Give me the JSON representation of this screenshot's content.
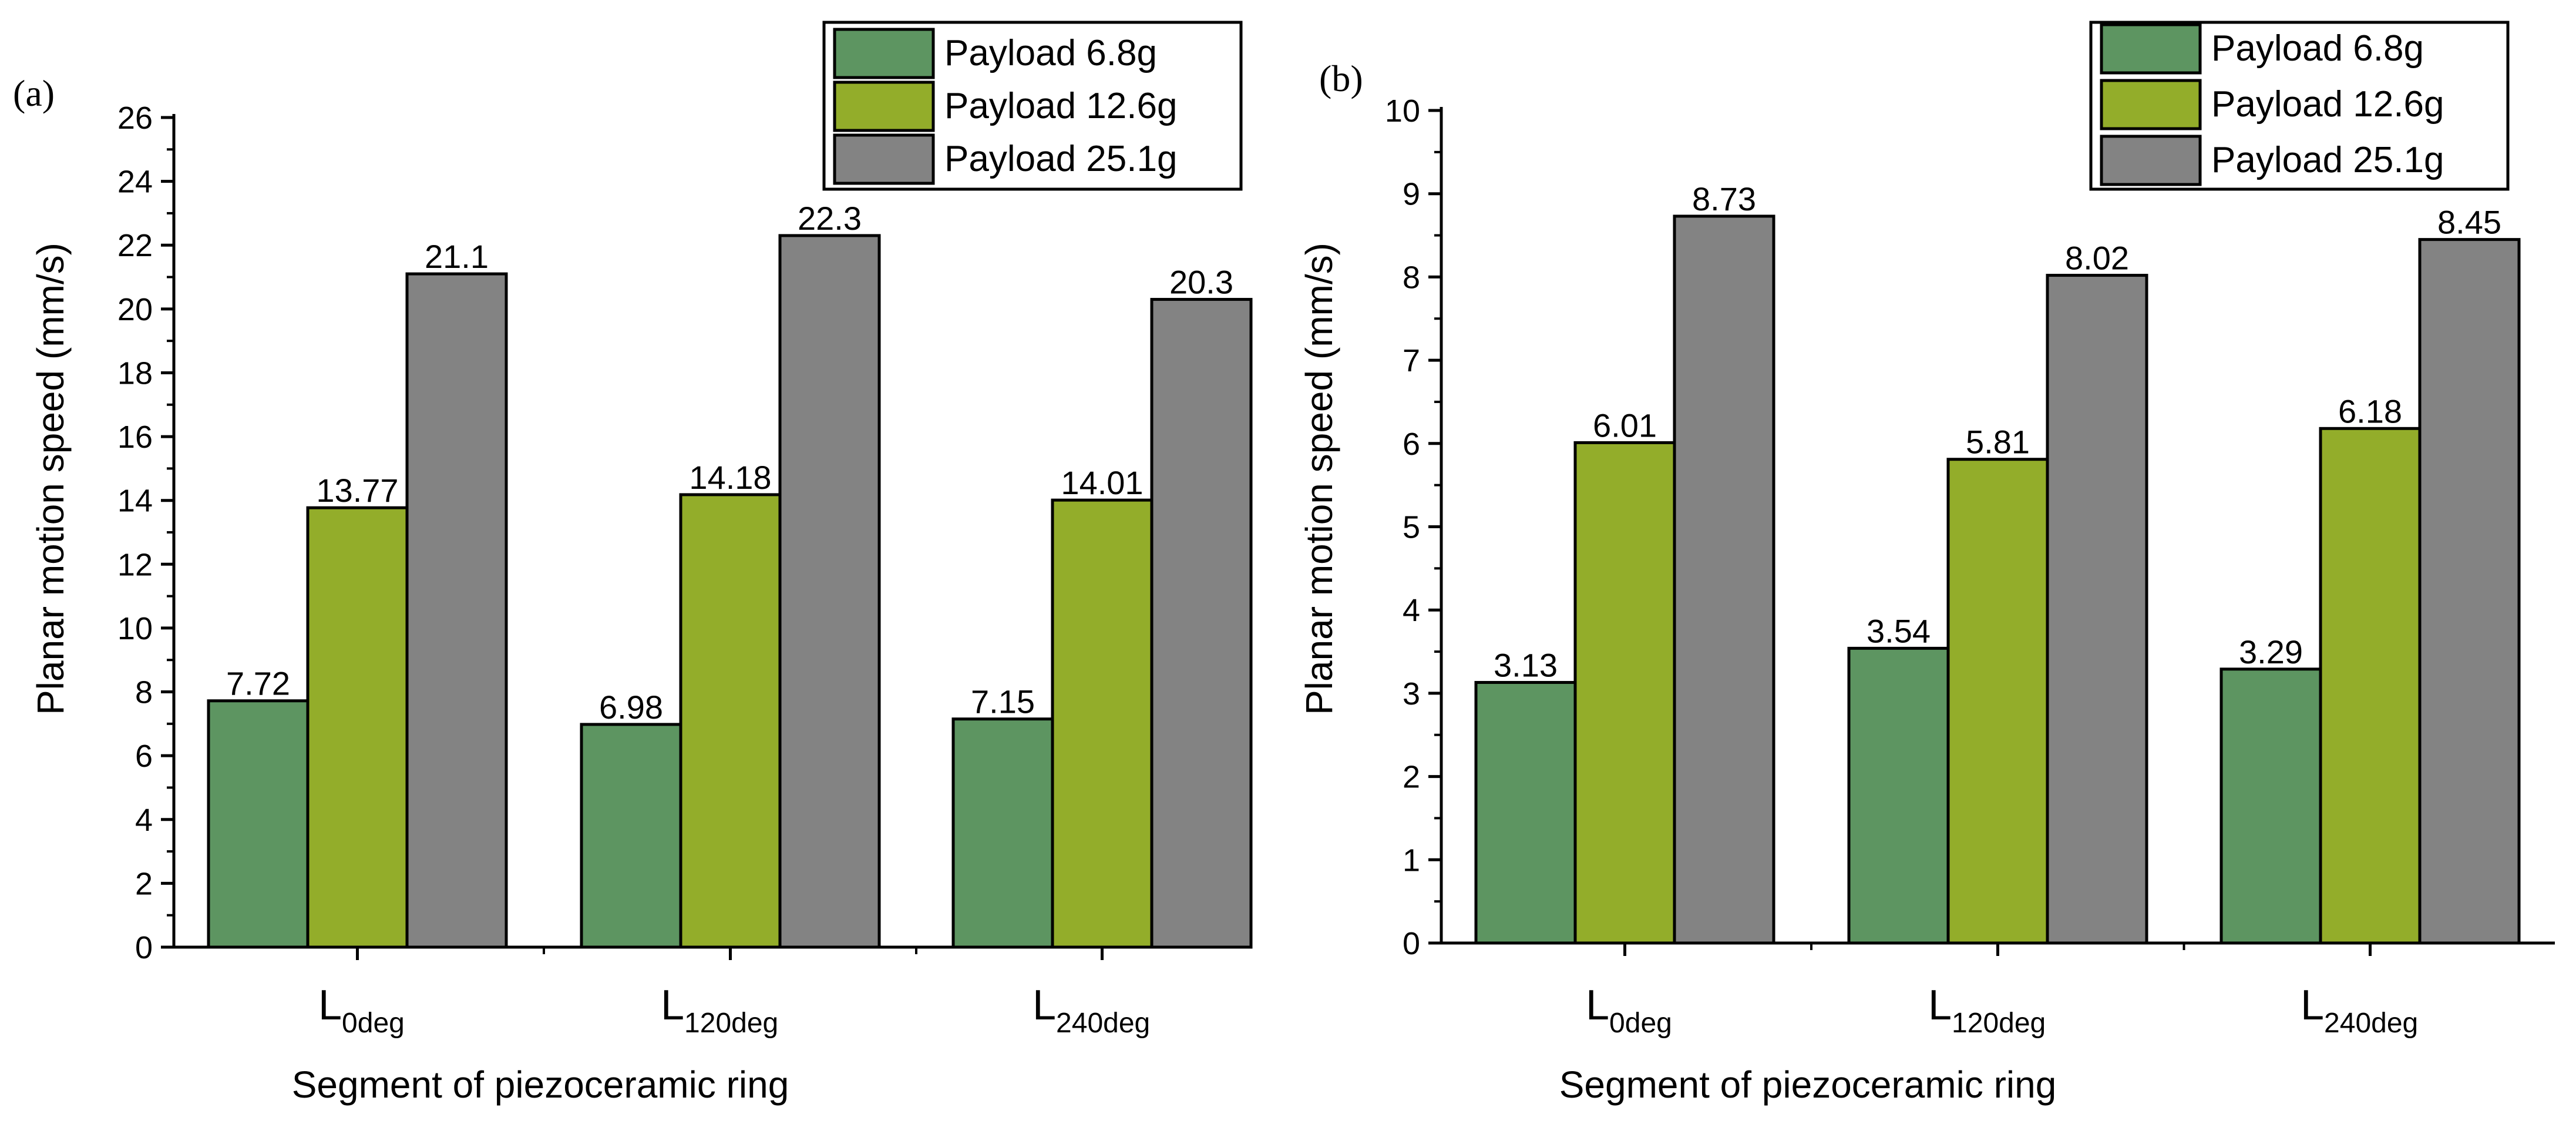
{
  "colors": {
    "payload_6_8": "#5d9561",
    "payload_12_6": "#93ad2a",
    "payload_25_1": "#838383"
  },
  "chart_data": [
    {
      "type": "bar",
      "panel_label": "(a)",
      "xlabel": "Segment of piezoceramic ring",
      "ylabel": "Planar motion speed (mm/s)",
      "categories": [
        {
          "main": "L",
          "sub": "0deg"
        },
        {
          "main": "L",
          "sub": "120deg"
        },
        {
          "main": "L",
          "sub": "240deg"
        }
      ],
      "series": [
        {
          "name": "Payload 6.8g",
          "values": [
            7.72,
            6.98,
            7.15
          ],
          "labels": [
            "7.72",
            "6.98",
            "7.15"
          ]
        },
        {
          "name": "Payload 12.6g",
          "values": [
            13.77,
            14.18,
            14.01
          ],
          "labels": [
            "13.77",
            "14.18",
            "14.01"
          ]
        },
        {
          "name": "Payload 25.1g",
          "values": [
            21.1,
            22.3,
            20.3
          ],
          "labels": [
            "21.1",
            "22.3",
            "20.3"
          ]
        }
      ],
      "ylim": [
        0,
        26
      ],
      "yticks": [
        "0",
        "2",
        "4",
        "6",
        "8",
        "10",
        "12",
        "14",
        "16",
        "18",
        "20",
        "22",
        "24",
        "26"
      ],
      "ytick_step": 2,
      "yminor_step": 1,
      "legend": "top-right"
    },
    {
      "type": "bar",
      "panel_label": "(b)",
      "xlabel": "Segment of piezoceramic ring",
      "ylabel": "Planar motion speed (mm/s)",
      "categories": [
        {
          "main": "L",
          "sub": "0deg"
        },
        {
          "main": "L",
          "sub": "120deg"
        },
        {
          "main": "L",
          "sub": "240deg"
        }
      ],
      "series": [
        {
          "name": "Payload 6.8g",
          "values": [
            3.13,
            3.54,
            3.29
          ],
          "labels": [
            "3.13",
            "3.54",
            "3.29"
          ]
        },
        {
          "name": "Payload 12.6g",
          "values": [
            6.01,
            5.81,
            6.18
          ],
          "labels": [
            "6.01",
            "5.81",
            "6.18"
          ]
        },
        {
          "name": "Payload 25.1g",
          "values": [
            8.73,
            8.02,
            8.45
          ],
          "labels": [
            "8.73",
            "8.02",
            "8.45"
          ]
        }
      ],
      "ylim": [
        0,
        10
      ],
      "yticks": [
        "0",
        "1",
        "2",
        "3",
        "4",
        "5",
        "6",
        "7",
        "8",
        "9",
        "10"
      ],
      "ytick_step": 1,
      "yminor_step": 0.5,
      "legend": "top-right"
    }
  ]
}
